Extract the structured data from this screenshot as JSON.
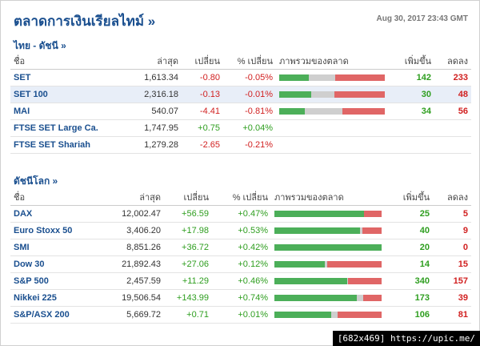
{
  "page": {
    "title": "ตลาดการเงินเรียลไทม์ »",
    "timestamp": "Aug 30, 2017 23:43 GMT",
    "watermark": "[682x469] https://upic.me/"
  },
  "thai": {
    "title": "ไทย - ดัชนี  »",
    "headers": {
      "name": "ชื่อ",
      "last": "ล่าสุด",
      "change": "เปลี่ยน",
      "pct": "% เปลี่ยน",
      "overview": "ภาพรวมของตลาด",
      "adv": "เพิ่มขึ้น",
      "dec": "ลดลง"
    },
    "rows": [
      {
        "name": "SET",
        "last": "1,613.34",
        "change": "-0.80",
        "pct": "-0.05%",
        "dir": "neg",
        "adv": "142",
        "dec": "233",
        "unch": 0.25,
        "highlight": false
      },
      {
        "name": "SET 100",
        "last": "2,316.18",
        "change": "-0.13",
        "pct": "-0.01%",
        "dir": "neg",
        "adv": "30",
        "dec": "48",
        "unch": 0.22,
        "highlight": true
      },
      {
        "name": "MAI",
        "last": "540.07",
        "change": "-4.41",
        "pct": "-0.81%",
        "dir": "neg",
        "adv": "34",
        "dec": "56",
        "unch": 0.35,
        "highlight": false
      },
      {
        "name": "FTSE SET Large Ca.",
        "last": "1,747.95",
        "change": "+0.75",
        "pct": "+0.04%",
        "dir": "pos",
        "adv": "",
        "dec": "",
        "highlight": false
      },
      {
        "name": "FTSE SET Shariah",
        "last": "1,279.28",
        "change": "-2.65",
        "pct": "-0.21%",
        "dir": "neg",
        "adv": "",
        "dec": "",
        "highlight": false
      }
    ]
  },
  "world": {
    "title": "ดัชนีโลก »",
    "headers": {
      "name": "ชื่อ",
      "last": "ล่าสุด",
      "change": "เปลี่ยน",
      "pct": "% เปลี่ยน",
      "overview": "ภาพรวมของตลาด",
      "adv": "เพิ่มขึ้น",
      "dec": "ลดลง"
    },
    "rows": [
      {
        "name": "DAX",
        "last": "12,002.47",
        "change": "+56.59",
        "pct": "+0.47%",
        "dir": "pos",
        "adv": "25",
        "dec": "5",
        "unch": 0.0,
        "highlight": false
      },
      {
        "name": "Euro Stoxx 50",
        "last": "3,406.20",
        "change": "+17.98",
        "pct": "+0.53%",
        "dir": "pos",
        "adv": "40",
        "dec": "9",
        "unch": 0.02,
        "highlight": false
      },
      {
        "name": "SMI",
        "last": "8,851.26",
        "change": "+36.72",
        "pct": "+0.42%",
        "dir": "pos",
        "adv": "20",
        "dec": "0",
        "unch": 0.0,
        "highlight": false
      },
      {
        "name": "Dow 30",
        "last": "21,892.43",
        "change": "+27.06",
        "pct": "+0.12%",
        "dir": "pos",
        "adv": "14",
        "dec": "15",
        "unch": 0.02,
        "highlight": false
      },
      {
        "name": "S&P 500",
        "last": "2,457.59",
        "change": "+11.29",
        "pct": "+0.46%",
        "dir": "pos",
        "adv": "340",
        "dec": "157",
        "unch": 0.01,
        "highlight": false
      },
      {
        "name": "Nikkei 225",
        "last": "19,506.54",
        "change": "+143.99",
        "pct": "+0.74%",
        "dir": "pos",
        "adv": "173",
        "dec": "39",
        "unch": 0.06,
        "highlight": false
      },
      {
        "name": "S&P/ASX 200",
        "last": "5,669.72",
        "change": "+0.71",
        "pct": "+0.01%",
        "dir": "pos",
        "adv": "106",
        "dec": "81",
        "unch": 0.06,
        "highlight": false
      }
    ]
  }
}
